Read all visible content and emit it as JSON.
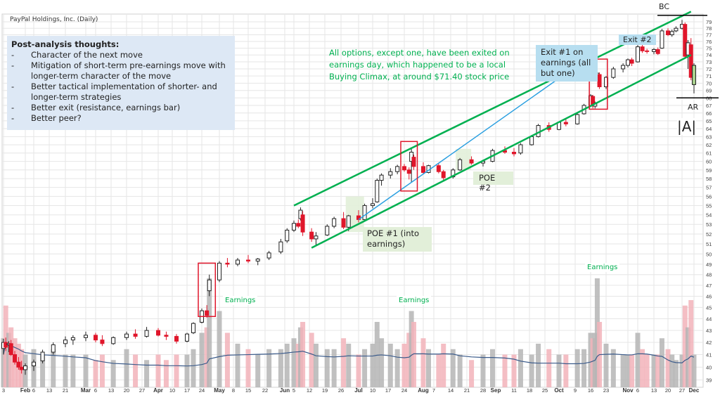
{
  "chart_title": "PayPal Holdings, Inc. (Daily)",
  "notes": {
    "heading": "Post-analysis thoughts:",
    "bullet": "-",
    "items": [
      "Character of the next move",
      "Mitigation of short-term pre-earnings move with longer-term character of the move",
      "Better tactical implementation of shorter- and longer-term strategies",
      "Better exit (resistance, earnings bar)",
      "Better peer?"
    ]
  },
  "annotations": {
    "green_note": "All options, except one, have been exited on earnings day, which happened to be a local Buying Climax, at around $71.40 stock price",
    "exit1": "Exit #1 on earnings (all but one)",
    "exit2": "Exit #2",
    "poe1": "POE #1 (into earnings)",
    "poe2": "POE #2",
    "earnings_labels": [
      "Earnings",
      "Earnings",
      "Earnings"
    ],
    "bc": "BC",
    "ar": "AR",
    "phase": "|A|"
  },
  "colors": {
    "up": "#222222",
    "down": "#e0162b",
    "channel": "#00b050",
    "arrow": "#2a9fe0",
    "box": "#e0162b",
    "volume_up": "#b5b5b5",
    "volume_down": "#f2b3ba",
    "volume_ma": "#3a5a8a",
    "last_bar_highlight": "#a9d18e"
  },
  "chart_data": {
    "type": "candlestick",
    "y_scale": "log",
    "ylim": [
      39,
      79
    ],
    "y_ticks": [
      39,
      40,
      41,
      42,
      43,
      44,
      45,
      46,
      47,
      48,
      49,
      50,
      51,
      52,
      53,
      54,
      55,
      56,
      57,
      58,
      59,
      60,
      61,
      62,
      63,
      64,
      65,
      66,
      67,
      68,
      69,
      70,
      71,
      72,
      73,
      74,
      75,
      76,
      77,
      78,
      79
    ],
    "grid": true,
    "x_ticks": [
      {
        "label": "3",
        "date": "Jan 3"
      },
      {
        "label": "Feb",
        "date": "Feb 1"
      },
      {
        "label": "6",
        "date": "Feb 6"
      },
      {
        "label": "13",
        "date": "Feb 13"
      },
      {
        "label": "21",
        "date": "Feb 21"
      },
      {
        "label": "Mar",
        "date": "Mar 1"
      },
      {
        "label": "6",
        "date": "Mar 6"
      },
      {
        "label": "13",
        "date": "Mar 13"
      },
      {
        "label": "20",
        "date": "Mar 20"
      },
      {
        "label": "27",
        "date": "Mar 27"
      },
      {
        "label": "Apr",
        "date": "Apr 3"
      },
      {
        "label": "10",
        "date": "Apr 10"
      },
      {
        "label": "17",
        "date": "Apr 17"
      },
      {
        "label": "24",
        "date": "Apr 24"
      },
      {
        "label": "May",
        "date": "May 1"
      },
      {
        "label": "8",
        "date": "May 8"
      },
      {
        "label": "15",
        "date": "May 15"
      },
      {
        "label": "22",
        "date": "May 22"
      },
      {
        "label": "Jun",
        "date": "Jun 1"
      },
      {
        "label": "5",
        "date": "Jun 5"
      },
      {
        "label": "12",
        "date": "Jun 12"
      },
      {
        "label": "19",
        "date": "Jun 19"
      },
      {
        "label": "26",
        "date": "Jun 26"
      },
      {
        "label": "Jul",
        "date": "Jul 3"
      },
      {
        "label": "10",
        "date": "Jul 10"
      },
      {
        "label": "17",
        "date": "Jul 17"
      },
      {
        "label": "24",
        "date": "Jul 24"
      },
      {
        "label": "Aug",
        "date": "Aug 1"
      },
      {
        "label": "7",
        "date": "Aug 7"
      },
      {
        "label": "14",
        "date": "Aug 14"
      },
      {
        "label": "21",
        "date": "Aug 21"
      },
      {
        "label": "28",
        "date": "Aug 28"
      },
      {
        "label": "Sep",
        "date": "Sep 1"
      },
      {
        "label": "11",
        "date": "Sep 11"
      },
      {
        "label": "18",
        "date": "Sep 18"
      },
      {
        "label": "25",
        "date": "Sep 25"
      },
      {
        "label": "Oct",
        "date": "Oct 2"
      },
      {
        "label": "9",
        "date": "Oct 9"
      },
      {
        "label": "16",
        "date": "Oct 16"
      },
      {
        "label": "23",
        "date": "Oct 23"
      },
      {
        "label": "Nov",
        "date": "Nov 1"
      },
      {
        "label": "6",
        "date": "Nov 6"
      },
      {
        "label": "13",
        "date": "Nov 13"
      },
      {
        "label": "20",
        "date": "Nov 20"
      },
      {
        "label": "27",
        "date": "Nov 27"
      },
      {
        "label": "Dec",
        "date": "Dec 1"
      }
    ],
    "candles_columns": [
      "date",
      "open",
      "high",
      "low",
      "close",
      "volume_relative"
    ],
    "candles": [
      [
        "Jan 3",
        41.5,
        42.3,
        41.0,
        42.0,
        0.45
      ],
      [
        "Jan 6",
        42.0,
        42.4,
        41.3,
        41.6,
        0.75
      ],
      [
        "Jan 10",
        41.8,
        42.1,
        41.2,
        41.9,
        0.5
      ],
      [
        "Jan 13",
        41.9,
        42.2,
        40.9,
        41.0,
        0.55
      ],
      [
        "Jan 18",
        41.0,
        41.3,
        40.2,
        40.4,
        0.45
      ],
      [
        "Jan 23",
        40.4,
        40.8,
        39.8,
        40.0,
        0.4
      ],
      [
        "Jan 27",
        40.0,
        40.5,
        39.5,
        39.8,
        0.35
      ],
      [
        "Feb 1",
        39.8,
        40.3,
        39.4,
        40.1,
        0.3
      ],
      [
        "Feb 6",
        40.1,
        40.6,
        39.7,
        40.4,
        0.35
      ],
      [
        "Feb 10",
        40.5,
        41.4,
        40.3,
        41.2,
        0.3
      ],
      [
        "Feb 15",
        41.2,
        42.0,
        41.0,
        41.8,
        0.35
      ],
      [
        "Feb 21",
        41.9,
        42.5,
        41.6,
        42.2,
        0.3
      ],
      [
        "Feb 24",
        42.2,
        42.6,
        41.8,
        42.4,
        0.3
      ],
      [
        "Mar 1",
        42.4,
        42.9,
        42.1,
        42.6,
        0.3
      ],
      [
        "Mar 6",
        42.6,
        42.8,
        42.0,
        42.2,
        0.25
      ],
      [
        "Mar 9",
        42.2,
        42.6,
        41.7,
        41.9,
        0.3
      ],
      [
        "Mar 14",
        41.9,
        42.5,
        41.8,
        42.4,
        0.25
      ],
      [
        "Mar 20",
        42.4,
        42.9,
        42.2,
        42.7,
        0.35
      ],
      [
        "Mar 24",
        42.7,
        43.1,
        42.3,
        42.5,
        0.3
      ],
      [
        "Mar 29",
        42.5,
        43.3,
        42.4,
        43.0,
        0.25
      ],
      [
        "Apr 3",
        43.0,
        43.2,
        42.5,
        42.6,
        0.3
      ],
      [
        "Apr 7",
        42.6,
        42.9,
        42.2,
        42.5,
        0.25
      ],
      [
        "Apr 12",
        42.5,
        42.7,
        41.9,
        42.1,
        0.3
      ],
      [
        "Apr 17",
        42.1,
        42.8,
        42.0,
        42.7,
        0.3
      ],
      [
        "Apr 20",
        42.8,
        43.7,
        42.7,
        43.6,
        0.35
      ],
      [
        "Apr 24",
        43.7,
        44.9,
        43.6,
        44.7,
        0.5
      ],
      [
        "Apr 26",
        44.7,
        45.2,
        44.1,
        44.3,
        0.55
      ],
      [
        "Apr 27",
        46.5,
        48.0,
        46.0,
        47.5,
        1.0
      ],
      [
        "May 1",
        47.5,
        49.3,
        47.3,
        49.1,
        0.7
      ],
      [
        "May 5",
        49.1,
        49.6,
        48.7,
        49.0,
        0.5
      ],
      [
        "May 10",
        49.0,
        49.6,
        48.8,
        49.4,
        0.4
      ],
      [
        "May 15",
        49.4,
        49.9,
        49.1,
        49.3,
        0.35
      ],
      [
        "May 19",
        49.3,
        49.6,
        48.9,
        49.5,
        0.3
      ],
      [
        "May 24",
        49.6,
        50.3,
        49.4,
        50.1,
        0.35
      ],
      [
        "May 30",
        50.2,
        51.5,
        50.0,
        51.2,
        0.35
      ],
      [
        "Jun 2",
        51.3,
        52.6,
        51.1,
        52.4,
        0.4
      ],
      [
        "Jun 5",
        52.4,
        53.4,
        52.2,
        53.1,
        0.45
      ],
      [
        "Jun 7",
        53.1,
        53.5,
        52.6,
        52.8,
        0.4
      ],
      [
        "Jun 8",
        53.6,
        54.8,
        53.4,
        54.5,
        0.55
      ],
      [
        "Jun 9",
        54.0,
        54.4,
        51.8,
        52.2,
        0.6
      ],
      [
        "Jun 13",
        52.2,
        52.6,
        51.2,
        51.5,
        0.5
      ],
      [
        "Jun 15",
        51.5,
        52.2,
        50.9,
        51.8,
        0.4
      ],
      [
        "Jun 20",
        51.9,
        53.0,
        51.8,
        52.8,
        0.35
      ],
      [
        "Jun 23",
        52.8,
        53.8,
        52.6,
        53.6,
        0.35
      ],
      [
        "Jun 27",
        53.6,
        54.3,
        52.5,
        52.7,
        0.45
      ],
      [
        "Jun 29",
        52.7,
        54.0,
        52.3,
        53.9,
        0.4
      ],
      [
        "Jul 3",
        53.9,
        54.5,
        53.2,
        53.5,
        0.3
      ],
      [
        "Jul 6",
        53.5,
        55.2,
        53.3,
        55.0,
        0.35
      ],
      [
        "Jul 10",
        55.0,
        55.8,
        54.7,
        55.2,
        0.4
      ],
      [
        "Jul 12",
        55.4,
        58.0,
        55.3,
        57.8,
        0.6
      ],
      [
        "Jul 14",
        57.8,
        58.6,
        57.2,
        58.4,
        0.45
      ],
      [
        "Jul 18",
        58.4,
        59.2,
        58.0,
        58.8,
        0.4
      ],
      [
        "Jul 21",
        58.8,
        59.6,
        58.5,
        59.4,
        0.35
      ],
      [
        "Jul 24",
        59.4,
        59.7,
        58.8,
        59.0,
        0.4
      ],
      [
        "Jul 26",
        59.0,
        59.3,
        57.9,
        58.6,
        0.5
      ],
      [
        "Jul 27",
        60.0,
        61.6,
        57.6,
        61.1,
        0.7
      ],
      [
        "Jul 28",
        60.5,
        60.8,
        59.0,
        59.4,
        0.6
      ],
      [
        "Aug 1",
        59.4,
        59.9,
        58.5,
        58.7,
        0.45
      ],
      [
        "Aug 4",
        58.7,
        59.6,
        58.6,
        59.5,
        0.35
      ],
      [
        "Aug 9",
        59.5,
        59.8,
        58.6,
        58.8,
        0.3
      ],
      [
        "Aug 11",
        58.8,
        59.0,
        57.8,
        58.1,
        0.4
      ],
      [
        "Aug 15",
        58.2,
        59.2,
        58.0,
        59.0,
        0.35
      ],
      [
        "Aug 18",
        59.0,
        60.4,
        58.9,
        60.2,
        0.3
      ],
      [
        "Aug 23",
        60.2,
        60.6,
        59.6,
        59.8,
        0.25
      ],
      [
        "Aug 28",
        59.8,
        60.2,
        59.4,
        60.0,
        0.3
      ],
      [
        "Aug 31",
        60.0,
        61.5,
        59.9,
        61.3,
        0.35
      ],
      [
        "Sep 6",
        61.3,
        61.8,
        60.9,
        61.1,
        0.3
      ],
      [
        "Sep 11",
        61.1,
        61.6,
        60.6,
        60.9,
        0.3
      ],
      [
        "Sep 14",
        61.0,
        62.2,
        60.8,
        62.0,
        0.35
      ],
      [
        "Sep 19",
        62.0,
        63.2,
        61.9,
        63.0,
        0.3
      ],
      [
        "Sep 22",
        63.0,
        64.6,
        62.9,
        64.4,
        0.4
      ],
      [
        "Sep 27",
        64.4,
        64.8,
        63.6,
        63.9,
        0.35
      ],
      [
        "Oct 2",
        63.9,
        64.9,
        63.8,
        64.8,
        0.3
      ],
      [
        "Oct 5",
        64.8,
        65.3,
        64.3,
        64.6,
        0.3
      ],
      [
        "Oct 10",
        64.6,
        66.0,
        64.5,
        65.8,
        0.35
      ],
      [
        "Oct 13",
        65.9,
        67.2,
        65.8,
        67.0,
        0.35
      ],
      [
        "Oct 16",
        67.0,
        68.5,
        66.8,
        68.3,
        0.5
      ],
      [
        "Oct 17",
        68.2,
        68.4,
        66.6,
        66.9,
        0.45
      ],
      [
        "Oct 18",
        66.9,
        67.5,
        66.6,
        67.2,
        0.5
      ],
      [
        "Oct 19",
        71.2,
        72.0,
        70.8,
        71.4,
        1.0
      ],
      [
        "Oct 20",
        71.2,
        71.5,
        69.2,
        69.5,
        0.6
      ],
      [
        "Oct 23",
        69.5,
        71.0,
        69.2,
        70.8,
        0.4
      ],
      [
        "Oct 26",
        70.8,
        72.3,
        70.6,
        72.0,
        0.35
      ],
      [
        "Oct 30",
        72.0,
        72.8,
        71.5,
        72.5,
        0.3
      ],
      [
        "Nov 1",
        72.5,
        73.5,
        72.2,
        73.3,
        0.3
      ],
      [
        "Nov 3",
        73.3,
        73.6,
        72.4,
        72.8,
        0.3
      ],
      [
        "Nov 6",
        73.0,
        75.5,
        72.9,
        75.2,
        0.5
      ],
      [
        "Nov 8",
        75.2,
        75.6,
        74.3,
        74.6,
        0.35
      ],
      [
        "Nov 10",
        74.6,
        74.9,
        74.2,
        74.5,
        0.3
      ],
      [
        "Nov 13",
        74.5,
        75.0,
        74.1,
        74.8,
        0.3
      ],
      [
        "Nov 15",
        74.8,
        75.1,
        74.0,
        74.2,
        0.3
      ],
      [
        "Nov 17",
        75.0,
        77.9,
        74.9,
        77.6,
        0.45
      ],
      [
        "Nov 20",
        77.6,
        78.0,
        76.8,
        77.0,
        0.35
      ],
      [
        "Nov 22",
        77.0,
        77.8,
        76.7,
        77.5,
        0.3
      ],
      [
        "Nov 24",
        77.6,
        78.3,
        77.4,
        78.0,
        0.25
      ],
      [
        "Nov 27",
        78.0,
        79.3,
        77.8,
        78.6,
        0.3
      ],
      [
        "Nov 28",
        78.6,
        78.9,
        73.5,
        73.8,
        0.75
      ],
      [
        "Nov 29",
        74.0,
        76.2,
        72.0,
        75.8,
        0.55
      ],
      [
        "Nov 30",
        75.5,
        76.5,
        70.4,
        70.8,
        0.8
      ],
      [
        "Dec 1",
        69.8,
        72.8,
        68.6,
        72.5,
        0.3
      ]
    ],
    "channel_lines": [
      {
        "from": [
          "Jun 5",
          55.0
        ],
        "to": [
          "Nov 30",
          80.6
        ]
      },
      {
        "from": [
          "Jun 13",
          50.6
        ],
        "to": [
          "Nov 30",
          74.0
        ]
      }
    ],
    "arrow": {
      "from": [
        "Jul 3",
        53.5
      ],
      "to": [
        "Oct 18",
        74.3
      ]
    },
    "earnings_boxes": [
      {
        "from": "Apr 24",
        "to": "Apr 28",
        "high": 49.1,
        "low": 44.2
      },
      {
        "from": "Jul 24",
        "to": "Jul 28",
        "high": 62.4,
        "low": 56.6
      },
      {
        "from": "Oct 17",
        "to": "Oct 22",
        "high": 73.4,
        "low": 66.5
      }
    ],
    "bc_level": 80.0,
    "ar_level": 68.0
  }
}
